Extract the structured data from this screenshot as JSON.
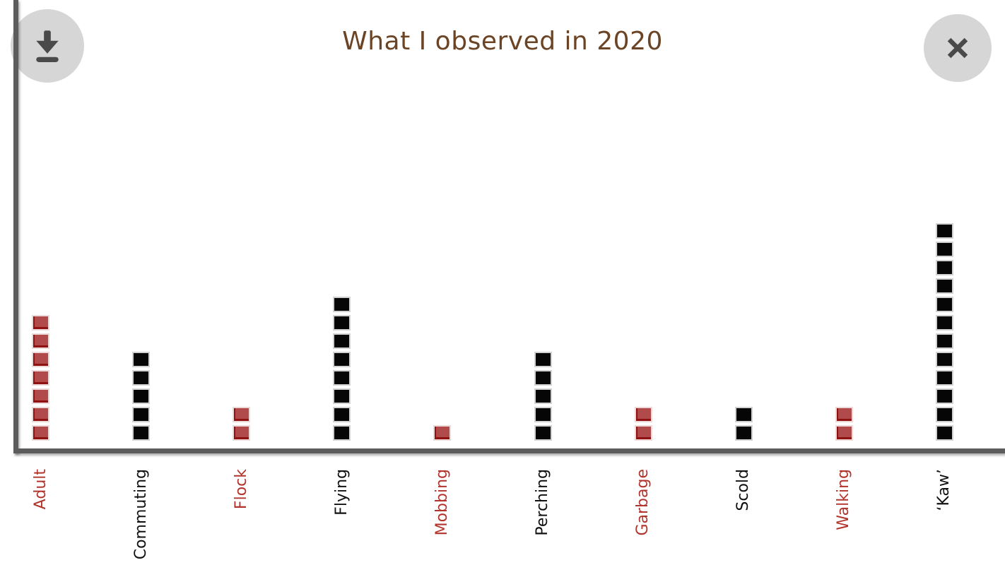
{
  "header": {
    "title": "What I observed in 2020"
  },
  "toolbar": {
    "download_button": {
      "icon": "download-arrow-icon"
    },
    "close_button": {
      "icon": "close-x-icon"
    }
  },
  "colors": {
    "title": "#6a4425",
    "axis": "#5c5c5c",
    "button_circle": "#d6d6d6",
    "button_glyph": "#4a4a4a",
    "square_red": "#b14a4a",
    "square_red_edge": "#8f1111",
    "square_black": "#060606",
    "label_red": "#b1352c",
    "label_black": "#111111"
  },
  "chart_data": {
    "type": "bar",
    "subtype": "unit-square pictogram (1 square = 1 count)",
    "title": "What I observed in 2020",
    "categories": [
      "Adult",
      "Commuting",
      "Flock",
      "Flying",
      "Mobbing",
      "Perching",
      "Garbage",
      "Scold",
      "Walking",
      "‘Kaw’"
    ],
    "values": [
      7,
      5,
      2,
      8,
      1,
      5,
      2,
      2,
      2,
      12
    ],
    "bar_color_keys": [
      "red",
      "black",
      "red",
      "black",
      "red",
      "black",
      "red",
      "black",
      "red",
      "black"
    ],
    "xlabel": "",
    "ylabel": "",
    "ylim": [
      0,
      12
    ],
    "grid": false,
    "legend": "none",
    "category_labels_rotated": true
  }
}
